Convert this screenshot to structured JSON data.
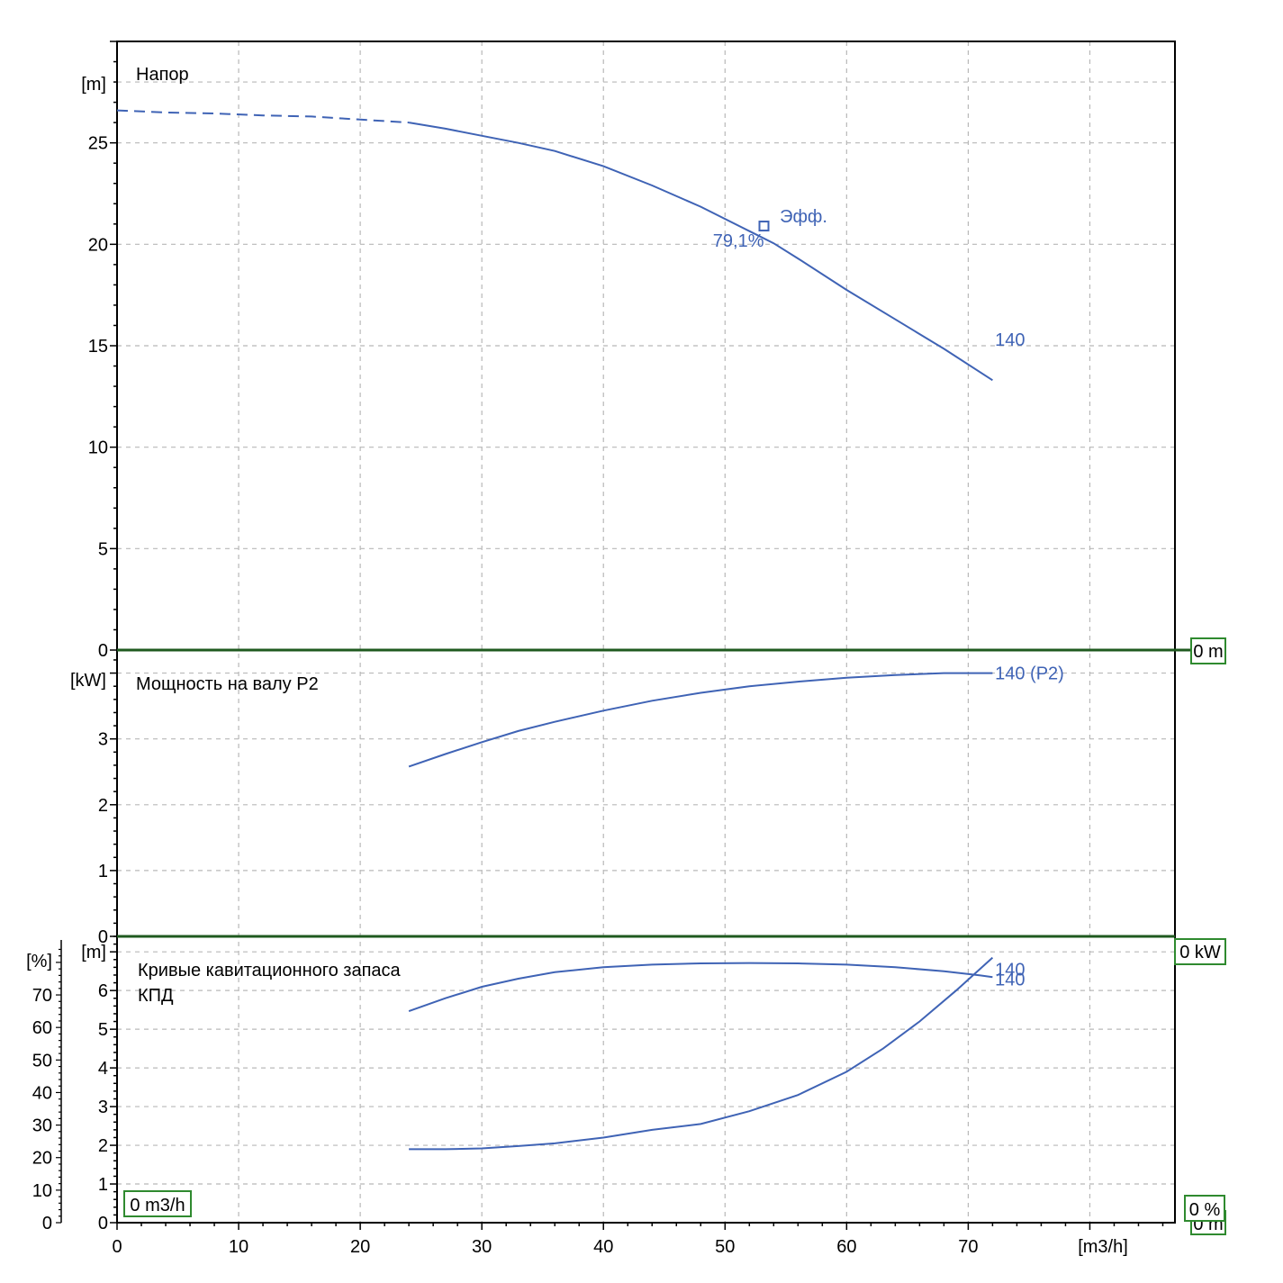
{
  "chart_data": [
    {
      "type": "line",
      "title": "Напор",
      "ylabel": "[m]",
      "xlim": [
        0,
        87
      ],
      "ylim": [
        0,
        30
      ],
      "y_ticks": [
        0,
        5,
        10,
        15,
        20,
        25
      ],
      "grid": true,
      "series": [
        {
          "name": "140",
          "style_segments": [
            {
              "style": "dashed",
              "x": [
                0,
                4,
                8,
                12,
                16,
                20,
                24
              ],
              "y": [
                26.6,
                26.5,
                26.45,
                26.35,
                26.3,
                26.15,
                26.0
              ]
            },
            {
              "style": "solid",
              "x": [
                24,
                27,
                30,
                33,
                36,
                40,
                44,
                48,
                52,
                54,
                56,
                60,
                64,
                68,
                72
              ],
              "y": [
                26.0,
                25.7,
                25.35,
                25.0,
                24.6,
                23.85,
                22.9,
                21.85,
                20.65,
                20.05,
                19.3,
                17.75,
                16.3,
                14.85,
                13.3
              ]
            }
          ]
        }
      ],
      "annotations": [
        {
          "text": "Эфф.",
          "x": 54.5,
          "y": 21.4
        },
        {
          "text": "79,1%",
          "x": 49,
          "y": 20.2
        },
        {
          "text": "140",
          "x": 72.2,
          "y": 15.3
        }
      ],
      "marker": {
        "x": 53.2,
        "y": 20.9
      },
      "value_box": "0 m"
    },
    {
      "type": "line",
      "title": "Мощность на валу P2",
      "ylabel": "[kW]",
      "xlim": [
        0,
        87
      ],
      "ylim": [
        0,
        4.35
      ],
      "y_ticks": [
        0,
        1,
        2,
        3
      ],
      "grid": true,
      "series": [
        {
          "name": "140 (P2)",
          "x": [
            24,
            27,
            30,
            33,
            36,
            40,
            44,
            48,
            52,
            56,
            60,
            64,
            68,
            72
          ],
          "y": [
            2.58,
            2.77,
            2.95,
            3.12,
            3.26,
            3.43,
            3.58,
            3.7,
            3.8,
            3.87,
            3.93,
            3.97,
            4.0,
            4.0
          ]
        }
      ],
      "annotations": [
        {
          "text": "140 (P2)",
          "x": 72.2,
          "y": 4.0
        }
      ],
      "value_box": "0 kW"
    },
    {
      "type": "line",
      "title": "Кривые кавитационного запаса",
      "subtitle": "КПД",
      "ylabel": "[m]",
      "ylabel2": "[%]",
      "xlabel": "[m3/h]",
      "xlim": [
        0,
        87
      ],
      "ylim": [
        0,
        7.4
      ],
      "ylim2": [
        0,
        88
      ],
      "y_ticks": [
        0,
        1,
        2,
        3,
        4,
        5,
        6
      ],
      "y2_ticks": [
        0,
        10,
        20,
        30,
        40,
        50,
        60,
        70
      ],
      "x_ticks": [
        0,
        10,
        20,
        30,
        40,
        50,
        60,
        70
      ],
      "grid": true,
      "series": [
        {
          "name": "140",
          "axis": "left",
          "x": [
            24,
            27,
            30,
            33,
            36,
            40,
            44,
            48,
            52,
            56,
            60,
            63,
            66,
            69,
            72
          ],
          "y": [
            1.9,
            1.9,
            1.92,
            1.98,
            2.05,
            2.2,
            2.4,
            2.55,
            2.88,
            3.3,
            3.9,
            4.5,
            5.2,
            6.0,
            6.85
          ]
        },
        {
          "name": "140",
          "axis": "right",
          "x": [
            24,
            27,
            30,
            33,
            36,
            40,
            44,
            48,
            52,
            56,
            60,
            64,
            68,
            71,
            72
          ],
          "y": [
            65,
            69,
            72.5,
            75,
            77,
            78.5,
            79.3,
            79.7,
            79.8,
            79.7,
            79.3,
            78.5,
            77.3,
            76,
            75.5
          ]
        }
      ],
      "annotations": [
        {
          "text": "140",
          "x": 72.2,
          "y": 6.55
        },
        {
          "text": "140",
          "x": 72.2,
          "y": 6.3
        }
      ],
      "value_boxes": [
        "0 m3/h",
        "0 %",
        "0 m"
      ]
    }
  ],
  "x_tick_labels": [
    "0",
    "10",
    "20",
    "30",
    "40",
    "50",
    "60",
    "70"
  ],
  "xlabel": "[m3/h]",
  "colors": {
    "curve": "#3f63b5",
    "grid": "#b8b8b8",
    "separator": "#1f5a1f",
    "box_border": "#2f8a2f"
  }
}
